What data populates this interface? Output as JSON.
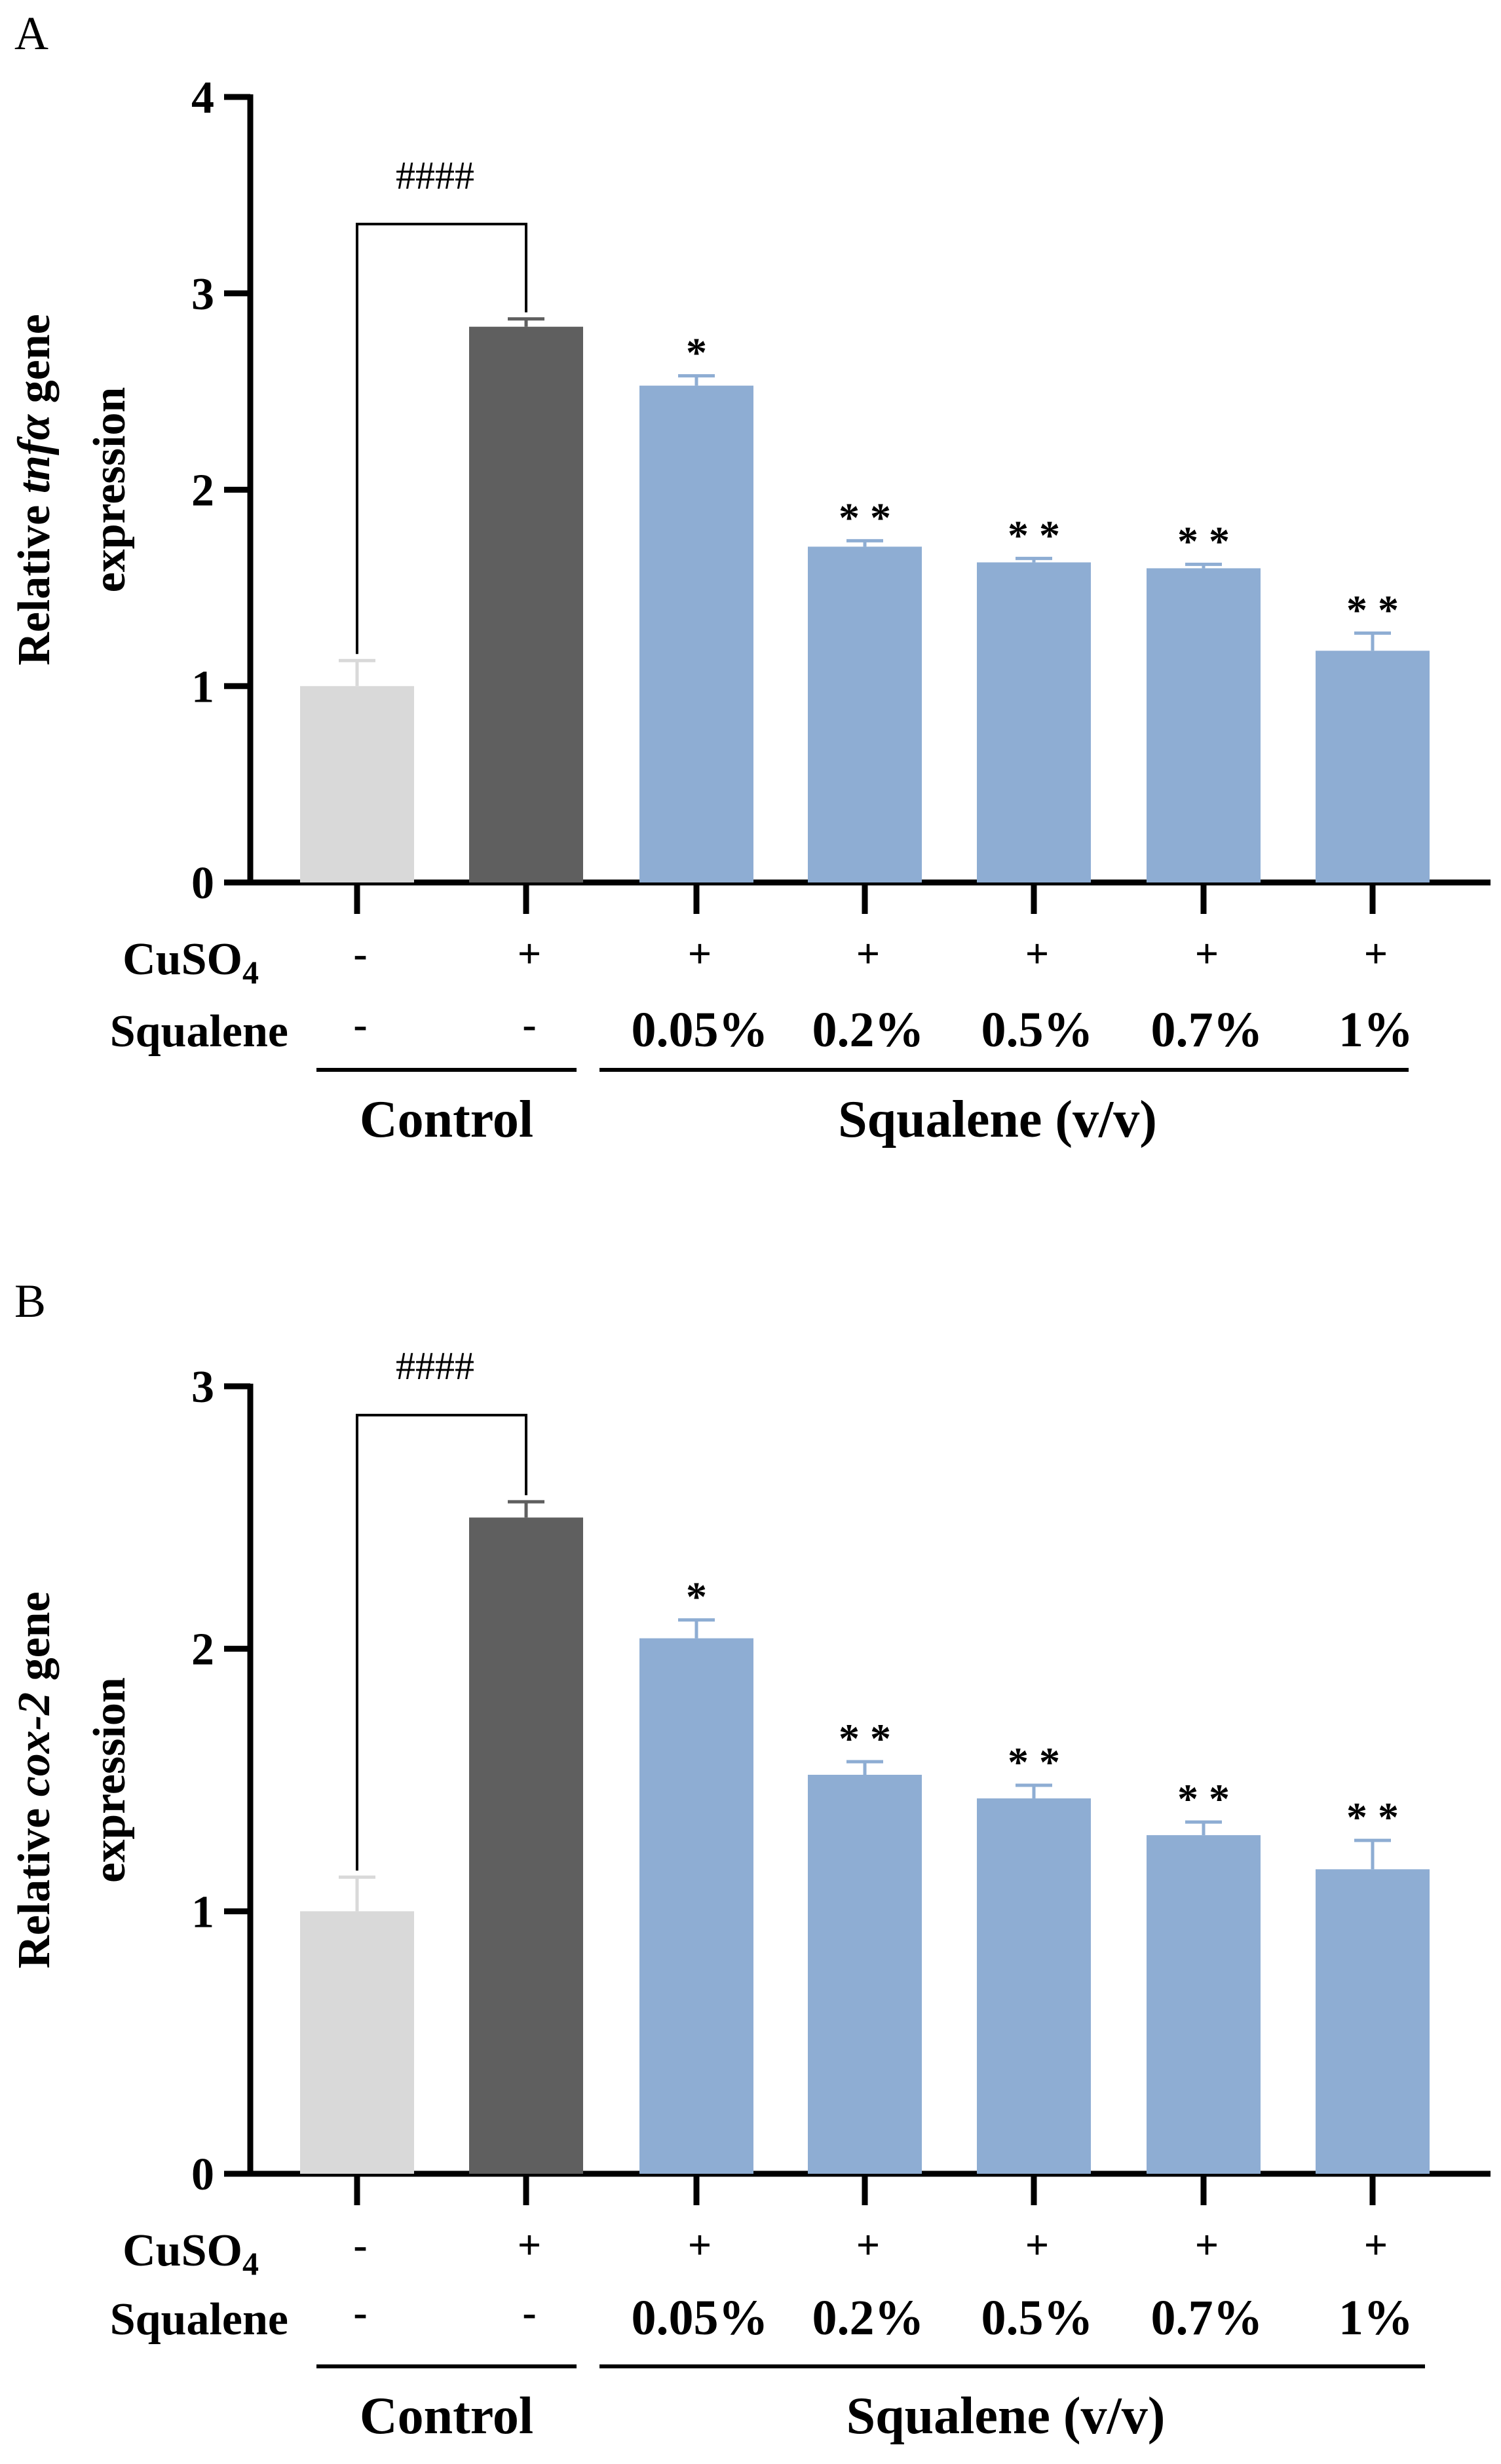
{
  "colors": {
    "control_bar": "#d9d9d9",
    "cuso4_bar": "#5f5f5f",
    "squalene_bar": "#8eadd3",
    "axis": "#000000"
  },
  "row_labels": {
    "cuso4": "CuSO",
    "cuso4_subscript": "4",
    "squalene": "Squalene"
  },
  "cuso4_marks": [
    "-",
    "+",
    "+",
    "+",
    "+",
    "+",
    "+"
  ],
  "squalene_marks": [
    "-",
    "-",
    "0.05%",
    "0.2%",
    "0.5%",
    "0.7%",
    "1%"
  ],
  "group_labels": {
    "control": "Control",
    "squalene": "Squalene (v/v)"
  },
  "chart_data": [
    {
      "type": "bar",
      "panel": "A",
      "ylabel_prefix": "Relative ",
      "ylabel_gene": "tnfα",
      "ylabel_suffix": " gene",
      "ylabel_line2": "expression",
      "ylim": [
        0,
        4
      ],
      "yticks": [
        "0",
        "1",
        "2",
        "3",
        "4"
      ],
      "categories": [
        "Control",
        "CuSO4",
        "0.05%",
        "0.2%",
        "0.5%",
        "0.7%",
        "1%"
      ],
      "values": [
        1.0,
        2.83,
        2.53,
        1.71,
        1.63,
        1.6,
        1.18
      ],
      "errors": [
        0.13,
        0.04,
        0.05,
        0.03,
        0.02,
        0.02,
        0.09
      ],
      "significance": [
        "",
        "",
        "*",
        "**",
        "**",
        "**",
        "**"
      ],
      "bracket_label": "####"
    },
    {
      "type": "bar",
      "panel": "B",
      "ylabel_prefix": "Relative ",
      "ylabel_gene": "cox-2",
      "ylabel_suffix": " gene",
      "ylabel_line2": "expression",
      "ylim": [
        0,
        3
      ],
      "yticks": [
        "0",
        "1",
        "2",
        "3"
      ],
      "categories": [
        "Control",
        "CuSO4",
        "0.05%",
        "0.2%",
        "0.5%",
        "0.7%",
        "1%"
      ],
      "values": [
        1.0,
        2.5,
        2.04,
        1.52,
        1.43,
        1.29,
        1.16
      ],
      "errors": [
        0.13,
        0.06,
        0.07,
        0.05,
        0.05,
        0.05,
        0.11
      ],
      "significance": [
        "",
        "",
        "*",
        "**",
        "**",
        "**",
        "**"
      ],
      "bracket_label": "####"
    }
  ]
}
